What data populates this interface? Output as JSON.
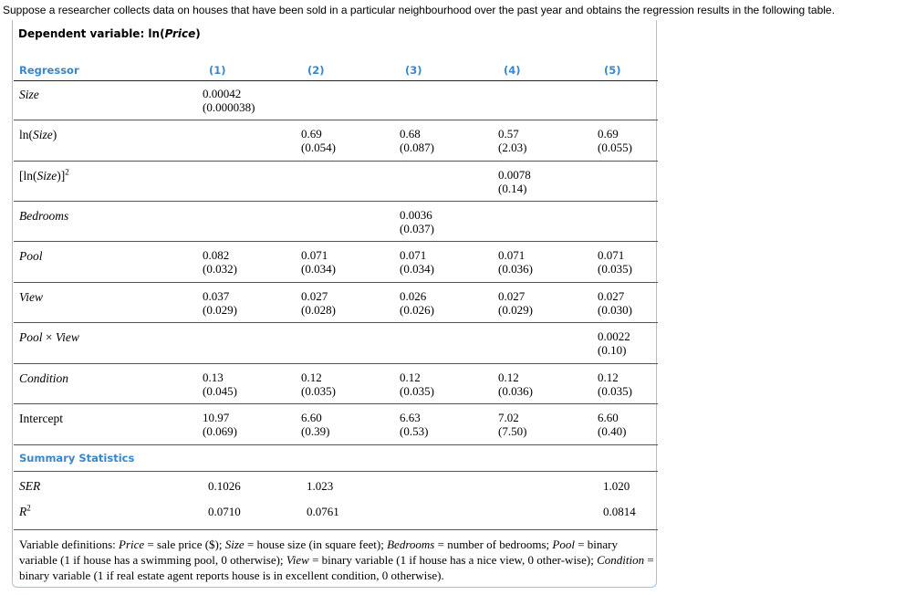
{
  "intro": "Suppose a researcher collects data on houses that have been sold in a particular neighbourhood over the past year and obtains the regression results in the following table.",
  "dependent_prefix": "Dependent variable: ln(",
  "dependent_var": "Price",
  "dependent_suffix": ")",
  "header": {
    "regressor": "Regressor",
    "cols": [
      "(1)",
      "(2)",
      "(3)",
      "(4)",
      "(5)"
    ]
  },
  "rows": [
    {
      "label": "Size",
      "cells": [
        [
          "0.00042",
          "(0.000038)"
        ],
        null,
        null,
        null,
        null
      ]
    },
    {
      "label": "ln(Size)",
      "cells": [
        null,
        [
          "0.69",
          "(0.054)"
        ],
        [
          "0.68",
          "(0.087)"
        ],
        [
          "0.57",
          "(2.03)"
        ],
        [
          "0.69",
          "(0.055)"
        ]
      ]
    },
    {
      "label": "[ln(Size)]²",
      "cells": [
        null,
        null,
        null,
        [
          "0.0078",
          "(0.14)"
        ],
        null
      ]
    },
    {
      "label": "Bedrooms",
      "cells": [
        null,
        null,
        [
          "0.0036",
          "(0.037)"
        ],
        null,
        null
      ]
    },
    {
      "label": "Pool",
      "cells": [
        [
          "0.082",
          "(0.032)"
        ],
        [
          "0.071",
          "(0.034)"
        ],
        [
          "0.071",
          "(0.034)"
        ],
        [
          "0.071",
          "(0.036)"
        ],
        [
          "0.071",
          "(0.035)"
        ]
      ]
    },
    {
      "label": "View",
      "cells": [
        [
          "0.037",
          "(0.029)"
        ],
        [
          "0.027",
          "(0.028)"
        ],
        [
          "0.026",
          "(0.026)"
        ],
        [
          "0.027",
          "(0.029)"
        ],
        [
          "0.027",
          "(0.030)"
        ]
      ]
    },
    {
      "label": "Pool × View",
      "cells": [
        null,
        null,
        null,
        null,
        [
          "0.0022",
          "(0.10)"
        ]
      ]
    },
    {
      "label": "Condition",
      "cells": [
        [
          "0.13",
          "(0.045)"
        ],
        [
          "0.12",
          "(0.035)"
        ],
        [
          "0.12",
          "(0.035)"
        ],
        [
          "0.12",
          "(0.036)"
        ],
        [
          "0.12",
          "(0.035)"
        ]
      ]
    },
    {
      "label": "Intercept",
      "cells": [
        [
          "10.97",
          "(0.069)"
        ],
        [
          "6.60",
          "(0.39)"
        ],
        [
          "6.63",
          "(0.53)"
        ],
        [
          "7.02",
          "(7.50)"
        ],
        [
          "6.60",
          "(0.40)"
        ]
      ]
    }
  ],
  "summary_title": "Summary Statistics",
  "ser": {
    "label": "SER",
    "values": [
      "0.1026",
      "1.023",
      "",
      "",
      "1.020"
    ]
  },
  "r2": {
    "label": "R²",
    "values": [
      "0.0710",
      "0.0761",
      "",
      "",
      "0.0814"
    ]
  },
  "definitions": [
    {
      "t": "Variable definitions: "
    },
    {
      "t": "Price",
      "i": true
    },
    {
      "t": " = sale price ($); "
    },
    {
      "t": "Size",
      "i": true
    },
    {
      "t": " = house size (in square feet); "
    },
    {
      "t": "Bedrooms",
      "i": true
    },
    {
      "t": " = number of bedrooms; "
    },
    {
      "t": "Pool",
      "i": true
    },
    {
      "t": " = binary variable (1 if house has a swimming pool, 0 otherwise); "
    },
    {
      "t": "View",
      "i": true
    },
    {
      "t": " = binary variable (1 if house has a nice view, 0 other-wise); "
    },
    {
      "t": "Condition",
      "i": true
    },
    {
      "t": " = binary variable (1 if real estate agent reports house is in excellent condition, 0 otherwise)."
    }
  ],
  "colors": {
    "accent": "#3a86cc",
    "border": "#9fc3e5"
  }
}
